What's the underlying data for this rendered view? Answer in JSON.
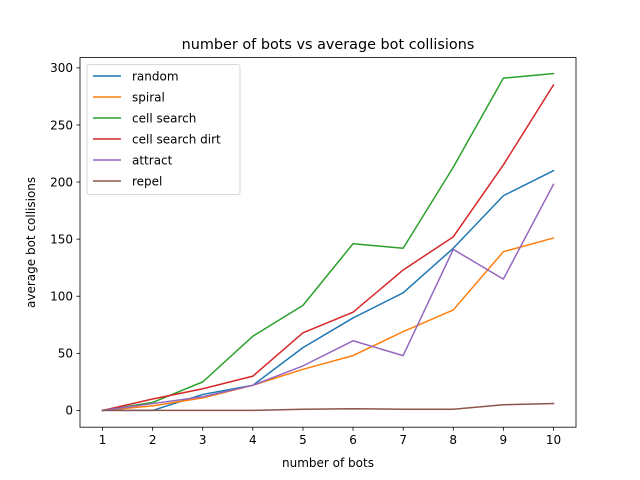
{
  "chart_data": {
    "type": "line",
    "title": "number of bots vs average bot collisions",
    "xlabel": "number of bots",
    "ylabel": "average bot collisions",
    "x": [
      1,
      2,
      3,
      4,
      5,
      6,
      7,
      8,
      9,
      10
    ],
    "xlim": [
      0.55,
      10.45
    ],
    "ylim": [
      -14.7,
      309
    ],
    "xticks": [
      1,
      2,
      3,
      4,
      5,
      6,
      7,
      8,
      9,
      10
    ],
    "yticks": [
      0,
      50,
      100,
      150,
      200,
      250,
      300
    ],
    "grid": false,
    "legend_position": "top-left",
    "series": [
      {
        "name": "random",
        "color": "#1f77b4",
        "values": [
          0,
          0,
          14,
          22,
          55,
          81,
          103,
          142,
          188,
          210
        ]
      },
      {
        "name": "spiral",
        "color": "#ff7f0e",
        "values": [
          0,
          4,
          11,
          22,
          36,
          48,
          69,
          88,
          139,
          151
        ]
      },
      {
        "name": "cell search",
        "color": "#2ca02c",
        "values": [
          0,
          7,
          25,
          65,
          92,
          146,
          142,
          213,
          291,
          295
        ]
      },
      {
        "name": "cell search dirt",
        "color": "#d62728",
        "values": [
          0,
          10,
          19,
          30,
          68,
          86,
          123,
          152,
          215,
          285
        ]
      },
      {
        "name": "attract",
        "color": "#9467bd",
        "values": [
          0,
          6,
          12,
          22,
          39,
          61,
          48,
          141,
          115,
          198
        ]
      },
      {
        "name": "repel",
        "color": "#8c564b",
        "values": [
          0,
          0,
          0,
          0,
          1,
          1.5,
          1,
          1,
          5,
          6
        ]
      }
    ]
  }
}
